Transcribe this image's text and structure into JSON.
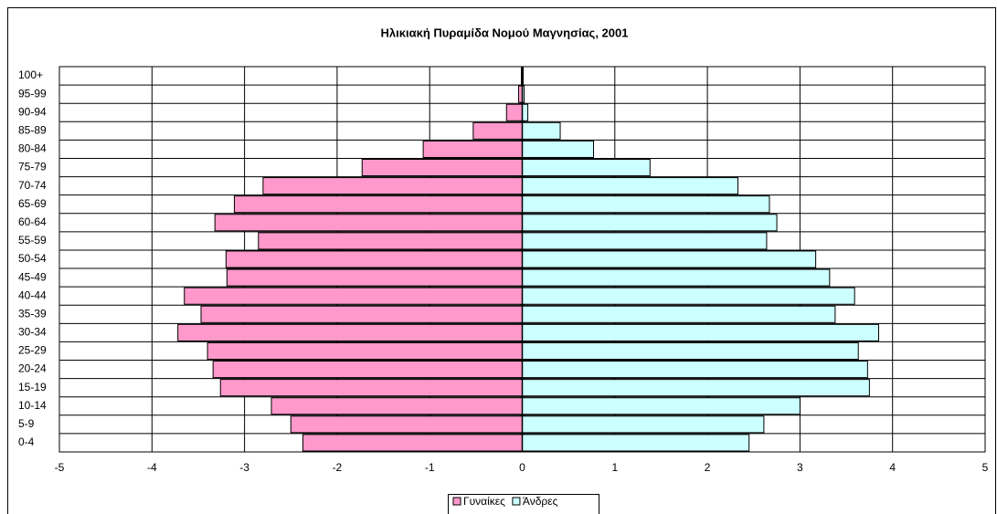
{
  "chart_data": {
    "type": "pyramid",
    "title": "Ηλικιακή Πυραμίδα Νομού Μαγνησίας, 2001",
    "categories": [
      "0-4",
      "5-9",
      "10-14",
      "15-19",
      "20-24",
      "25-29",
      "30-34",
      "35-39",
      "40-44",
      "45-49",
      "50-54",
      "55-59",
      "60-64",
      "65-69",
      "70-74",
      "75-79",
      "80-84",
      "85-89",
      "90-94",
      "95-99",
      "100+"
    ],
    "series": [
      {
        "name": "Γυναίκες",
        "color": "#ff99cc",
        "values": [
          -2.37,
          -2.5,
          -2.71,
          -3.26,
          -3.34,
          -3.4,
          -3.72,
          -3.47,
          -3.65,
          -3.19,
          -3.2,
          -2.85,
          -3.32,
          -3.11,
          -2.8,
          -1.73,
          -1.07,
          -0.53,
          -0.17,
          -0.04,
          -0.01
        ]
      },
      {
        "name": "Άνδρες",
        "color": "#ccffff",
        "values": [
          2.45,
          2.61,
          3.0,
          3.75,
          3.73,
          3.63,
          3.85,
          3.38,
          3.59,
          3.32,
          3.17,
          2.64,
          2.75,
          2.67,
          2.33,
          1.38,
          0.77,
          0.41,
          0.06,
          0.02,
          0.01
        ]
      }
    ],
    "xlim": [
      -5,
      5
    ],
    "xticks": [
      -5,
      -4,
      -3,
      -2,
      -1,
      0,
      1,
      2,
      3,
      4,
      5
    ],
    "grid": true,
    "legend": "bottom"
  }
}
